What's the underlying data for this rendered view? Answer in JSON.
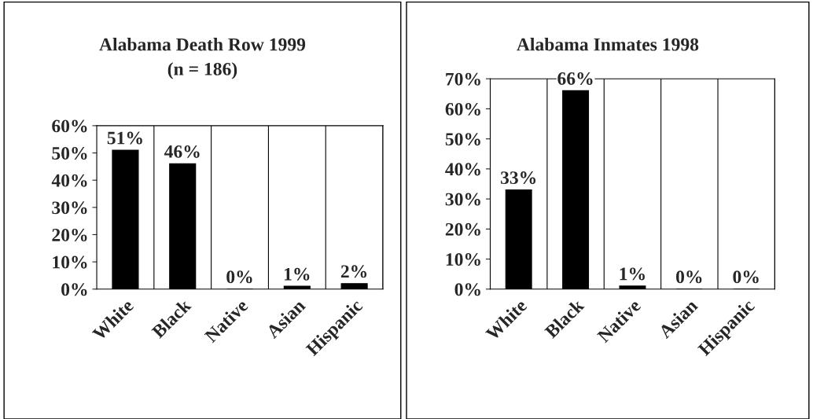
{
  "chart_data": [
    {
      "type": "bar",
      "title": "Alabama Death Row 1999\n(n = 186)",
      "categories": [
        "White",
        "Black",
        "Native",
        "Asian",
        "Hispanic"
      ],
      "values": [
        51,
        46,
        0,
        1,
        2
      ],
      "value_labels": [
        "51%",
        "46%",
        "0%",
        "1%",
        "2%"
      ],
      "color": "#000000",
      "ylim": [
        0,
        60
      ],
      "yticks": [
        {
          "value": 0,
          "label": "0%"
        },
        {
          "value": 10,
          "label": "10%"
        },
        {
          "value": 20,
          "label": "20%"
        },
        {
          "value": 30,
          "label": "30%"
        },
        {
          "value": 40,
          "label": "40%"
        },
        {
          "value": 50,
          "label": "50%"
        },
        {
          "value": 60,
          "label": "60%"
        }
      ],
      "grid": "x"
    },
    {
      "type": "bar",
      "title": "Alabama Inmates 1998",
      "categories": [
        "White",
        "Black",
        "Native",
        "Asian",
        "Hispanic"
      ],
      "values": [
        33,
        66,
        1,
        0,
        0
      ],
      "value_labels": [
        "33%",
        "66%",
        "1%",
        "0%",
        "0%"
      ],
      "color": "#000000",
      "ylim": [
        0,
        70
      ],
      "yticks": [
        {
          "value": 0,
          "label": "0%"
        },
        {
          "value": 10,
          "label": "10%"
        },
        {
          "value": 20,
          "label": "20%"
        },
        {
          "value": 30,
          "label": "30%"
        },
        {
          "value": 40,
          "label": "40%"
        },
        {
          "value": 50,
          "label": "50%"
        },
        {
          "value": 60,
          "label": "60%"
        },
        {
          "value": 70,
          "label": "70%"
        }
      ],
      "grid": "x"
    }
  ]
}
